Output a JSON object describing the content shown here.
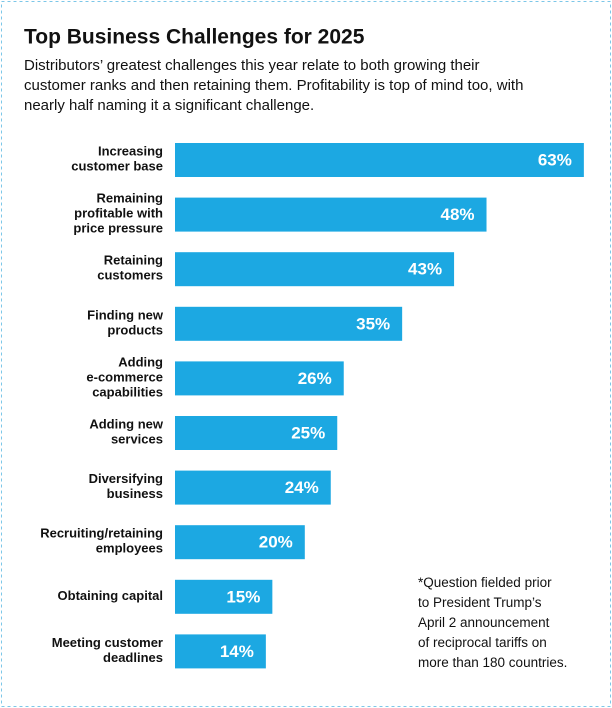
{
  "chart_data": {
    "type": "bar",
    "orientation": "horizontal",
    "title": "Top Business Challenges for 2025",
    "subtitle": "Distributors’ greatest challenges this year relate to both growing their\ncustomer ranks and then retaining them. Profitability is top of mind too, with\nnearly half naming it a significant challenge.",
    "categories": [
      "Increasing\ncustomer base",
      "Remaining\nprofitable with\nprice pressure",
      "Retaining\ncustomers",
      "Finding new\nproducts",
      "Adding\ne-commerce\ncapabilities",
      "Adding new\nservices",
      "Diversifying\nbusiness",
      "Recruiting/retaining\nemployees",
      "Obtaining capital",
      "Meeting customer\ndeadlines"
    ],
    "values": [
      63,
      48,
      43,
      35,
      26,
      25,
      24,
      20,
      15,
      14
    ],
    "value_labels": [
      "63%",
      "48%",
      "43%",
      "35%",
      "26%",
      "25%",
      "24%",
      "20%",
      "15%",
      "14%"
    ],
    "color": "#1ca8e2",
    "annotation": "*Question fielded prior\nto President Trump’s\nApril 2 announcement\nof reciprocal tariffs on\nmore than 180 countries."
  }
}
